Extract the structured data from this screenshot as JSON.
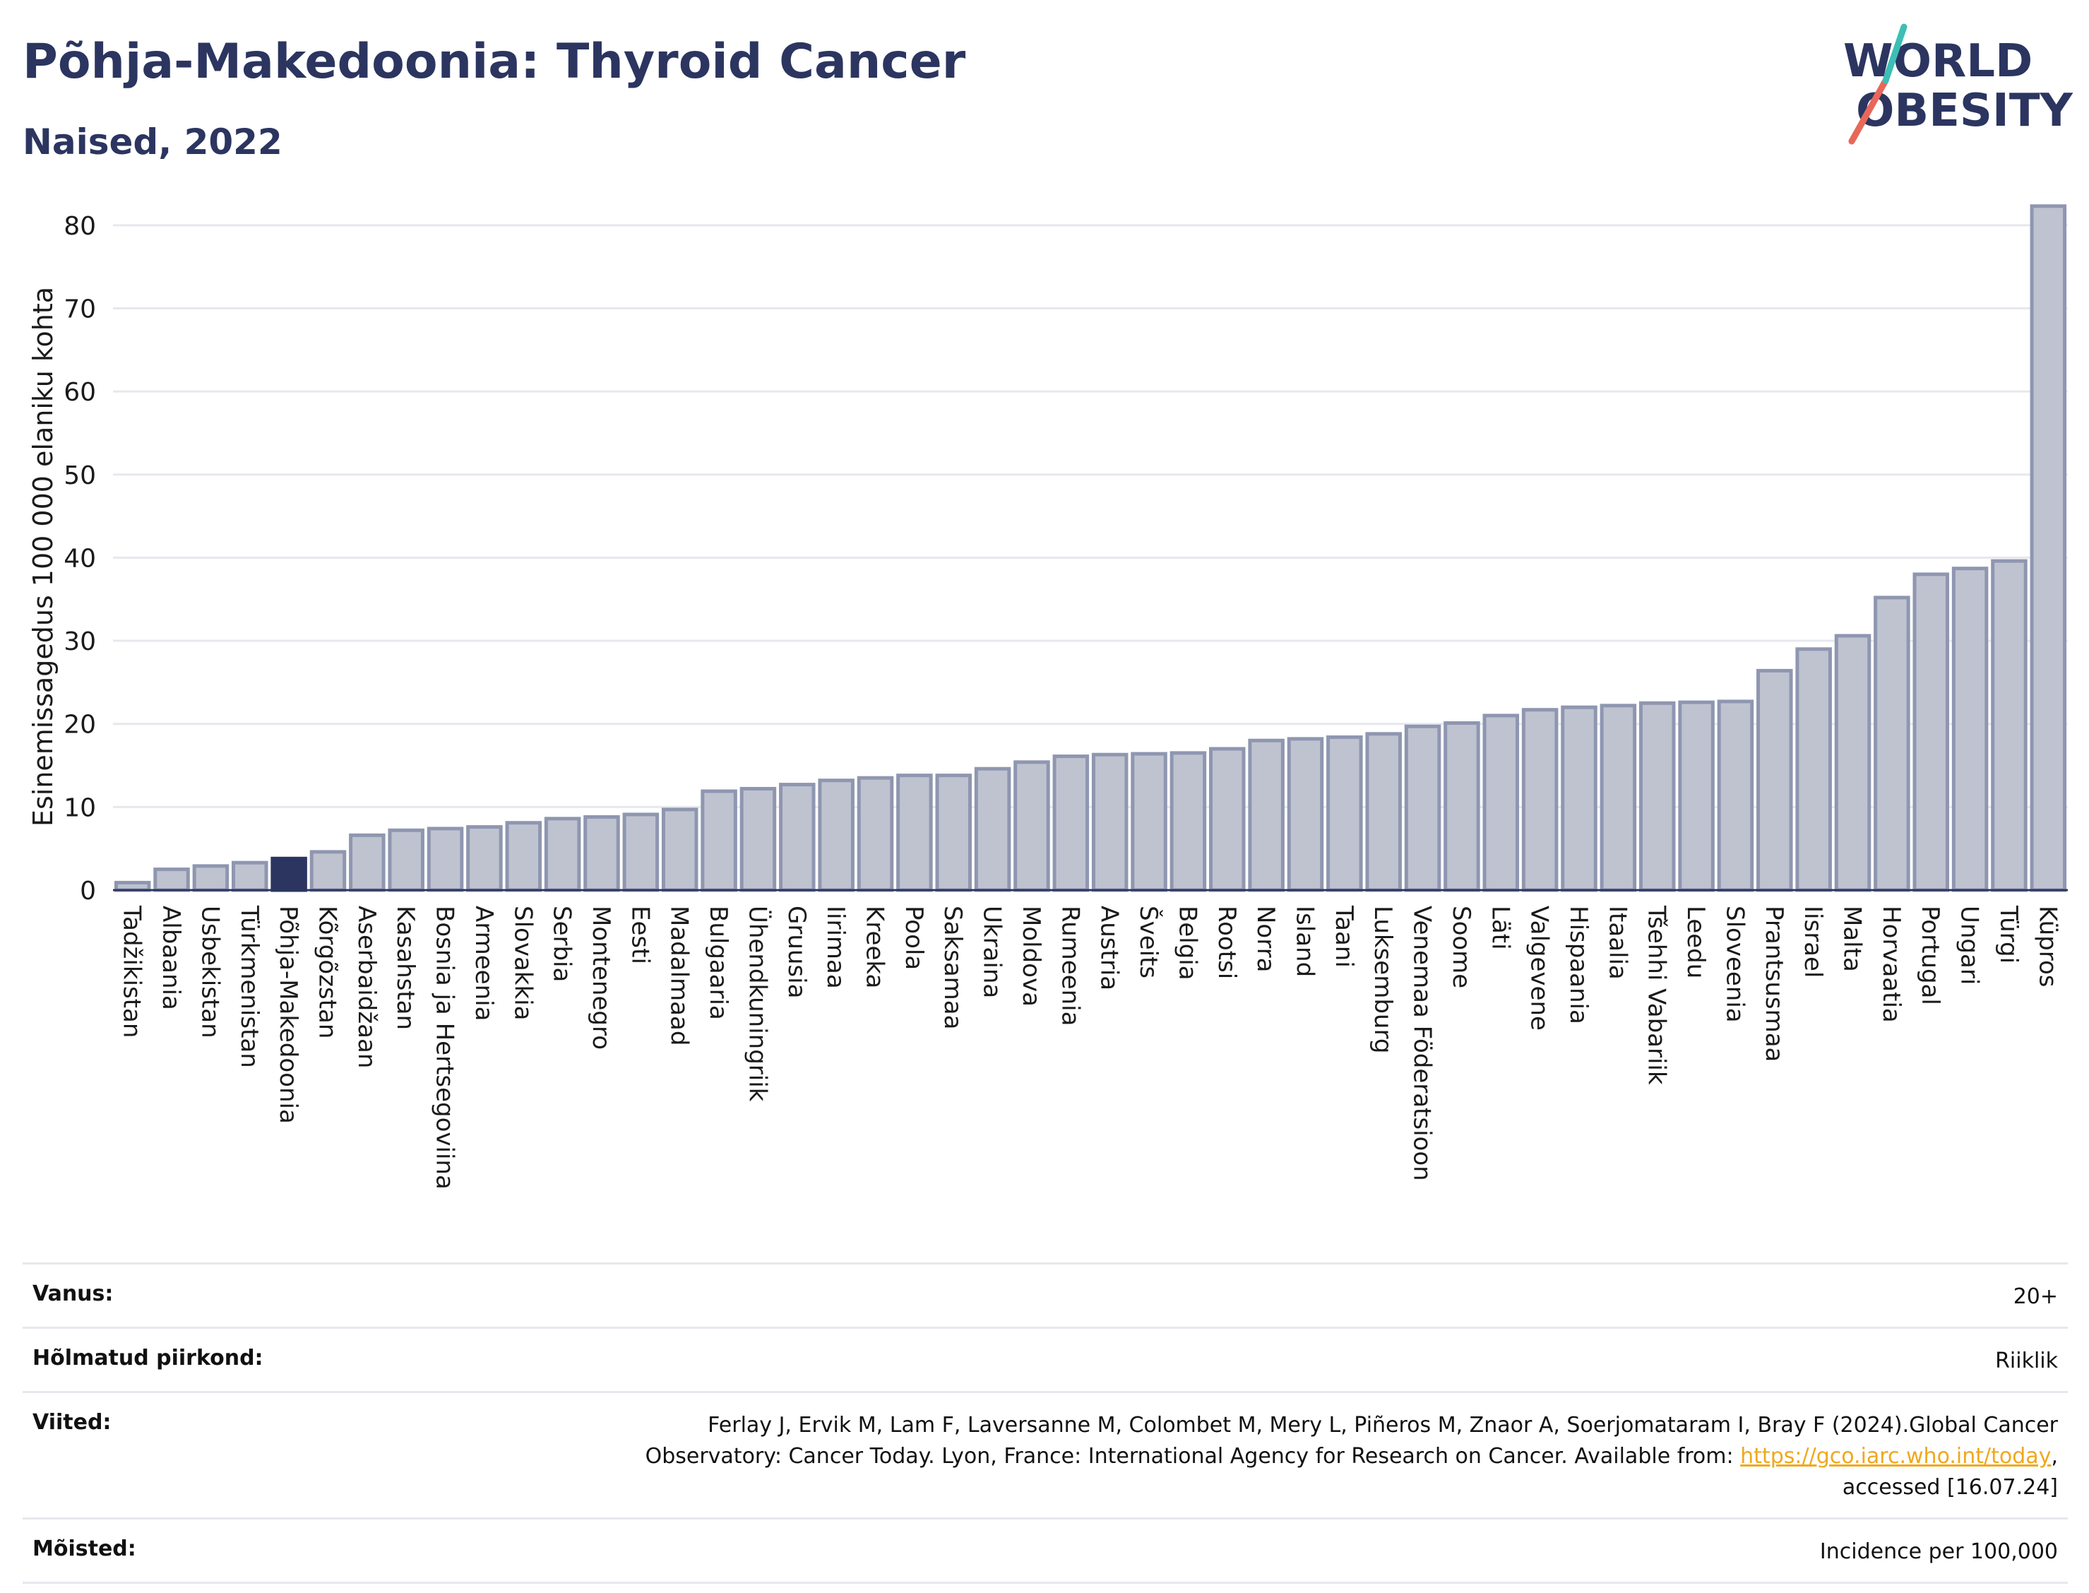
{
  "header": {
    "title": "Põhja-Makedoonia: Thyroid Cancer",
    "subtitle": "Naised, 2022"
  },
  "logo": {
    "line1": "WORLD",
    "line2": "OBESITY",
    "slash_colors": [
      "#e8685a",
      "#3bbfb5"
    ]
  },
  "chart_data": {
    "type": "bar",
    "ylabel": "Esinemissagedus 100 000 elaniku kohta",
    "ylim": [
      0,
      85
    ],
    "yticks": [
      0,
      10,
      20,
      30,
      40,
      50,
      60,
      70,
      80
    ],
    "grid": true,
    "highlight": "Põhja-Makedoonia",
    "colors": {
      "bar": "#bfc3d0",
      "bar_edge": "#8f96b0",
      "highlight": "#2b3560"
    },
    "categories": [
      "Tadžikistan",
      "Albaania",
      "Usbekistan",
      "Türkmenistan",
      "Põhja-Makedoonia",
      "Kõrgõzstan",
      "Aserbaidžaan",
      "Kasahstan",
      "Bosnia ja Hertsegoviina",
      "Armeenia",
      "Slovakkia",
      "Serbia",
      "Montenegro",
      "Eesti",
      "Madalmaad",
      "Bulgaaria",
      "Ühendkuningriik",
      "Gruusia",
      "Iirimaa",
      "Kreeka",
      "Poola",
      "Saksamaa",
      "Ukraina",
      "Moldova",
      "Rumeenia",
      "Austria",
      "Šveits",
      "Belgia",
      "Rootsi",
      "Norra",
      "Island",
      "Taani",
      "Luksemburg",
      "Venemaa Föderatsioon",
      "Soome",
      "Läti",
      "Valgevene",
      "Hispaania",
      "Itaalia",
      "Tšehhi Vabariik",
      "Leedu",
      "Sloveenia",
      "Prantsusmaa",
      "Iisrael",
      "Malta",
      "Horvaatia",
      "Portugal",
      "Ungari",
      "Türgi",
      "Küpros"
    ],
    "values": [
      0.9,
      2.5,
      2.9,
      3.3,
      3.8,
      4.6,
      6.6,
      7.2,
      7.4,
      7.6,
      8.1,
      8.6,
      8.8,
      9.1,
      9.7,
      11.9,
      12.2,
      12.7,
      13.2,
      13.5,
      13.8,
      13.8,
      14.6,
      15.4,
      16.1,
      16.3,
      16.4,
      16.5,
      17.0,
      18.0,
      18.2,
      18.4,
      18.8,
      19.7,
      20.1,
      21.0,
      21.7,
      22.0,
      22.2,
      22.5,
      22.6,
      22.7,
      26.4,
      29.0,
      30.6,
      35.2,
      38.0,
      38.7,
      39.6,
      82.3
    ]
  },
  "info": {
    "rows": [
      {
        "label": "Vanus:",
        "value": "20+"
      },
      {
        "label": "Hõlmatud piirkond:",
        "value": "Riiklik"
      },
      {
        "label": "Viited:",
        "value_before": "Ferlay J, Ervik M, Lam F, Laversanne M, Colombet M, Mery L, Piñeros M, Znaor A, Soerjomataram I, Bray F (2024).Global Cancer Observatory: Cancer Today. Lyon, France: International Agency for Research on Cancer. Available from: ",
        "link": "https://gco.iarc.who.int/today",
        "value_after": ", accessed [16.07.24]"
      },
      {
        "label": "Mõisted:",
        "value": "Incidence per 100,000"
      }
    ]
  }
}
